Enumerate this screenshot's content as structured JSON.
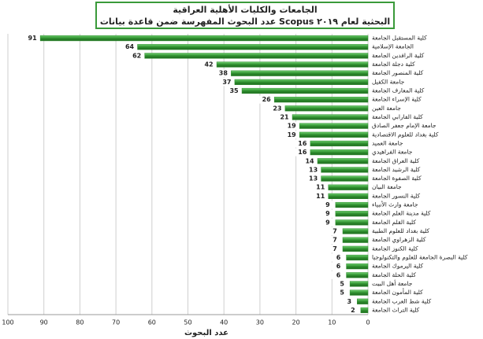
{
  "chart_data": {
    "type": "hbar",
    "title": [
      "الجامعات والكليات الأهلية العراقية",
      "عدد البحوث المفهرسة ضمن قاعدة بيانات Scopus البحثية لعام ٢٠١٩"
    ],
    "x_label": "عدد البحوث",
    "categories": [
      "كلية المستقبل الجامعة",
      "الجامعة الإسلامية",
      "كلية الرافدين الجامعة",
      "كلية دجلة الجامعة",
      "كلية المنصور الجامعة",
      "جامعة الكفيل",
      "كلية المعارف الجامعة",
      "كلية الإسراء الجامعة",
      "جامعة العين",
      "كلية الفارابي الجامعة",
      "جامعة الإمام جعفر الصادق",
      "كلية بغداد للعلوم الاقتصادية",
      "جامعة العميد",
      "جامعة الفراهيدي",
      "كلية العراق الجامعة",
      "كلية الرشيد الجامعة",
      "كلية الصفوة الجامعة",
      "جامعة البيان",
      "كلية النسور الجامعة",
      "جامعة وارث الأنبياء",
      "كلية مدينة العلم الجامعة",
      "كلية القلم الجامعة",
      "كلية بغداد للعلوم الطبية",
      "كلية الزهراوي الجامعة",
      "كلية الكنوز الجامعة",
      "كلية البصرة الجامعة للعلوم والتكنولوجيا",
      "كلية اليرموك الجامعة",
      "كلية الحلة الجامعة",
      "جامعة أهل البيت",
      "كلية المأمون الجامعة",
      "كلية شط العرب الجامعة",
      "كلية التراث الجامعة"
    ],
    "values": [
      91,
      64,
      62,
      42,
      38,
      37,
      35,
      26,
      23,
      21,
      19,
      19,
      16,
      16,
      14,
      13,
      13,
      11,
      11,
      9,
      9,
      9,
      7,
      7,
      7,
      6,
      6,
      6,
      5,
      5,
      3,
      2
    ],
    "color": "#2f8f2f",
    "xlim": [
      100,
      0
    ],
    "xticks": [
      100,
      90,
      80,
      70,
      60,
      50,
      40,
      30,
      20,
      10,
      0
    ],
    "grid": true
  }
}
